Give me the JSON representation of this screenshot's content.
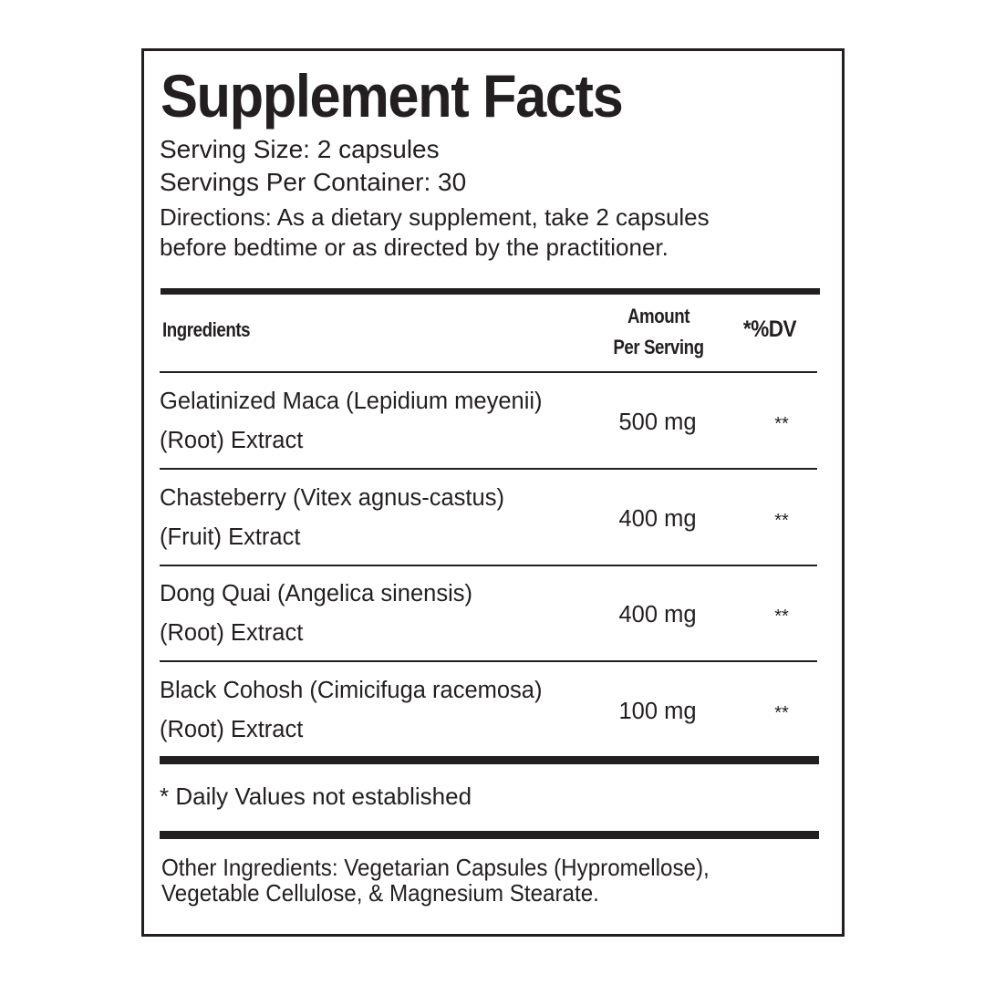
{
  "title": "Supplement Facts",
  "serving_size": "Serving Size: 2 capsules",
  "servings_per_container": "Servings Per Container: 30",
  "directions": [
    "Directions:  As a dietary supplement, take 2 capsules",
    "before bedtime or as directed by the practitioner."
  ],
  "header": {
    "ingredients": "Ingredients",
    "amount_line1": "Amount",
    "amount_line2": "Per Serving",
    "dv": "*%DV"
  },
  "rows": [
    {
      "name1": "Gelatinized Maca (Lepidium meyenii)",
      "name2": "(Root) Extract",
      "amount": "500 mg",
      "dv": "**"
    },
    {
      "name1": "Chasteberry (Vitex agnus-castus)",
      "name2": "(Fruit) Extract",
      "amount": "400 mg",
      "dv": "**"
    },
    {
      "name1": "Dong Quai (Angelica sinensis)",
      "name2": "(Root) Extract",
      "amount": "400 mg",
      "dv": "**"
    },
    {
      "name1": "Black Cohosh (Cimicifuga racemosa)",
      "name2": "(Root) Extract",
      "amount": "100 mg",
      "dv": "**"
    }
  ],
  "footnote": "* Daily Values not established",
  "other_ingredients": [
    "Other Ingredients: Vegetarian Capsules (Hypromellose),",
    "Vegetable Cellulose, & Magnesium Stearate."
  ]
}
